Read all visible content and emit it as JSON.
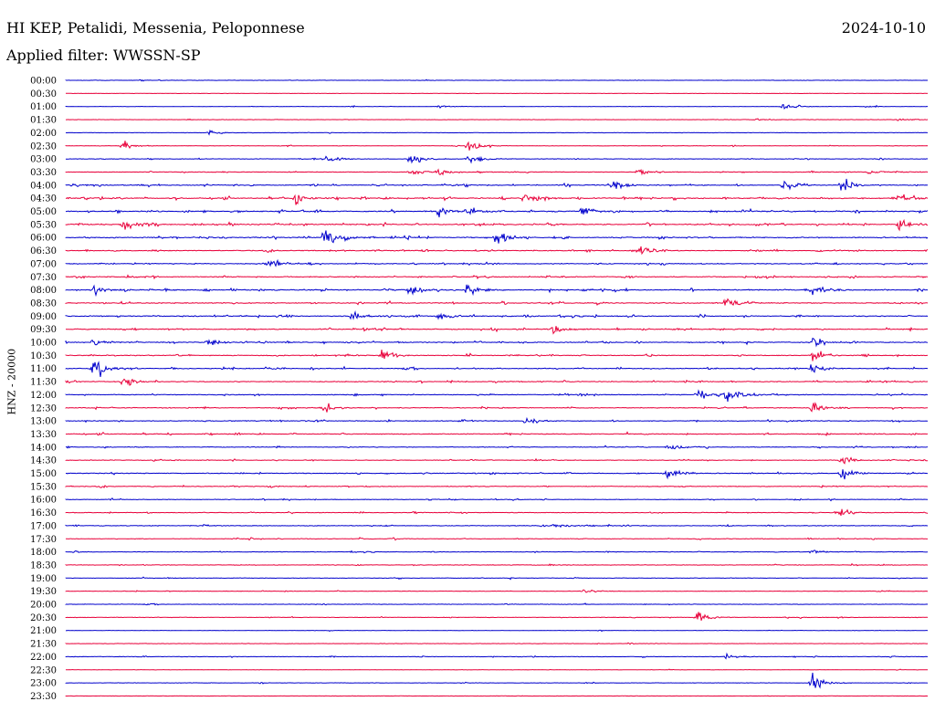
{
  "header": {
    "station": "HI KEP, Petalidi, Messenia, Peloponnese",
    "date": "2024-10-10",
    "filter": "Applied filter: WWSSN-SP",
    "ylabel": "HNZ - 20000"
  },
  "colors": {
    "blue": "#0000cc",
    "red": "#e8003a"
  },
  "chart_data": {
    "type": "line",
    "title": "HI KEP, Petalidi, Messenia, Peloponnese",
    "ylabel": "HNZ - 20000",
    "row_labels": [
      "00:00",
      "00:30",
      "01:00",
      "01:30",
      "02:00",
      "02:30",
      "03:00",
      "03:30",
      "04:00",
      "04:30",
      "05:00",
      "05:30",
      "06:00",
      "06:30",
      "07:00",
      "07:30",
      "08:00",
      "08:30",
      "09:00",
      "09:30",
      "10:00",
      "10:30",
      "11:00",
      "11:30",
      "12:00",
      "12:30",
      "13:00",
      "13:30",
      "14:00",
      "14:30",
      "15:00",
      "15:30",
      "16:00",
      "16:30",
      "17:00",
      "17:30",
      "18:00",
      "18:30",
      "19:00",
      "19:30",
      "20:00",
      "20:30",
      "21:00",
      "21:30",
      "22:00",
      "22:30",
      "23:00",
      "23:30"
    ],
    "row_colors": [
      "blue",
      "red"
    ],
    "activity": [
      0.02,
      0.01,
      0.05,
      0.05,
      0.06,
      0.15,
      0.25,
      0.3,
      0.55,
      0.7,
      0.8,
      0.75,
      0.7,
      0.55,
      0.55,
      0.6,
      0.75,
      0.6,
      0.65,
      0.6,
      0.55,
      0.5,
      0.55,
      0.5,
      0.45,
      0.45,
      0.4,
      0.45,
      0.4,
      0.35,
      0.45,
      0.4,
      0.35,
      0.3,
      0.35,
      0.3,
      0.25,
      0.25,
      0.25,
      0.15,
      0.12,
      0.2,
      0.08,
      0.06,
      0.15,
      0.03,
      0.05,
      0.03
    ],
    "events": [
      {
        "row": 2,
        "minute": 25,
        "amp": 4
      },
      {
        "row": 2,
        "minute": 13,
        "amp": 2
      },
      {
        "row": 3,
        "minute": 24,
        "amp": 2
      },
      {
        "row": 3,
        "minute": 29,
        "amp": 2
      },
      {
        "row": 4,
        "minute": 5,
        "amp": 4
      },
      {
        "row": 5,
        "minute": 2,
        "amp": 8
      },
      {
        "row": 5,
        "minute": 14,
        "amp": 9
      },
      {
        "row": 6,
        "minute": 9,
        "amp": 5
      },
      {
        "row": 6,
        "minute": 12,
        "amp": 12
      },
      {
        "row": 6,
        "minute": 14,
        "amp": 7
      },
      {
        "row": 7,
        "minute": 12,
        "amp": 7
      },
      {
        "row": 7,
        "minute": 13,
        "amp": 6
      },
      {
        "row": 7,
        "minute": 20,
        "amp": 6
      },
      {
        "row": 7,
        "minute": 28,
        "amp": 6
      },
      {
        "row": 8,
        "minute": 19,
        "amp": 8
      },
      {
        "row": 8,
        "minute": 25,
        "amp": 10
      },
      {
        "row": 8,
        "minute": 27,
        "amp": 12
      },
      {
        "row": 9,
        "minute": 8,
        "amp": 8
      },
      {
        "row": 9,
        "minute": 16,
        "amp": 10
      },
      {
        "row": 9,
        "minute": 29,
        "amp": 7
      },
      {
        "row": 10,
        "minute": 13,
        "amp": 9
      },
      {
        "row": 10,
        "minute": 14,
        "amp": 10
      },
      {
        "row": 10,
        "minute": 18,
        "amp": 8
      },
      {
        "row": 11,
        "minute": 2,
        "amp": 8
      },
      {
        "row": 11,
        "minute": 29,
        "amp": 12
      },
      {
        "row": 12,
        "minute": 9,
        "amp": 18
      },
      {
        "row": 12,
        "minute": 15,
        "amp": 12
      },
      {
        "row": 13,
        "minute": 20,
        "amp": 10
      },
      {
        "row": 14,
        "minute": 7,
        "amp": 7
      },
      {
        "row": 16,
        "minute": 1,
        "amp": 9
      },
      {
        "row": 16,
        "minute": 12,
        "amp": 9
      },
      {
        "row": 16,
        "minute": 14,
        "amp": 10
      },
      {
        "row": 16,
        "minute": 26,
        "amp": 10
      },
      {
        "row": 17,
        "minute": 23,
        "amp": 8
      },
      {
        "row": 18,
        "minute": 10,
        "amp": 8
      },
      {
        "row": 18,
        "minute": 13,
        "amp": 8
      },
      {
        "row": 19,
        "minute": 17,
        "amp": 8
      },
      {
        "row": 20,
        "minute": 1,
        "amp": 7
      },
      {
        "row": 20,
        "minute": 5,
        "amp": 7
      },
      {
        "row": 20,
        "minute": 26,
        "amp": 12
      },
      {
        "row": 21,
        "minute": 11,
        "amp": 10
      },
      {
        "row": 21,
        "minute": 26,
        "amp": 11
      },
      {
        "row": 22,
        "minute": 1,
        "amp": 18
      },
      {
        "row": 22,
        "minute": 26,
        "amp": 8
      },
      {
        "row": 23,
        "minute": 2,
        "amp": 8
      },
      {
        "row": 24,
        "minute": 22,
        "amp": 10
      },
      {
        "row": 24,
        "minute": 23,
        "amp": 12
      },
      {
        "row": 25,
        "minute": 9,
        "amp": 9
      },
      {
        "row": 25,
        "minute": 26,
        "amp": 10
      },
      {
        "row": 26,
        "minute": 16,
        "amp": 6
      },
      {
        "row": 28,
        "minute": 21,
        "amp": 10
      },
      {
        "row": 29,
        "minute": 27,
        "amp": 9
      },
      {
        "row": 30,
        "minute": 21,
        "amp": 12
      },
      {
        "row": 30,
        "minute": 27,
        "amp": 12
      },
      {
        "row": 33,
        "minute": 27,
        "amp": 7
      },
      {
        "row": 34,
        "minute": 17,
        "amp": 5
      },
      {
        "row": 36,
        "minute": 26,
        "amp": 5
      },
      {
        "row": 39,
        "minute": 18,
        "amp": 5
      },
      {
        "row": 41,
        "minute": 22,
        "amp": 12
      },
      {
        "row": 44,
        "minute": 23,
        "amp": 4
      },
      {
        "row": 46,
        "minute": 26,
        "amp": 14
      }
    ]
  }
}
